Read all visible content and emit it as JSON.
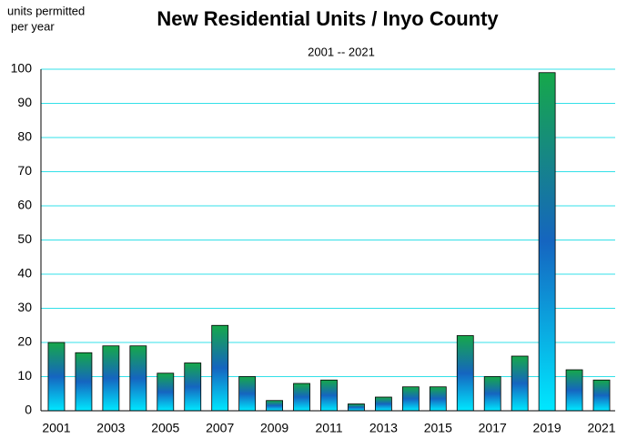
{
  "chart_data": {
    "type": "bar",
    "title": "New Residential Units / Inyo County",
    "subtitle": "2001 -- 2021",
    "y_label": [
      "units permitted",
      "per year"
    ],
    "categories": [
      "2001",
      null,
      "2003",
      null,
      "2005",
      null,
      "2007",
      null,
      "2009",
      null,
      "2011",
      null,
      "2013",
      null,
      "2015",
      null,
      "2017",
      null,
      "2019",
      null,
      "2021"
    ],
    "values": [
      20,
      17,
      19,
      19,
      11,
      14,
      25,
      10,
      3,
      8,
      9,
      2,
      4,
      7,
      7,
      22,
      10,
      16,
      99,
      12,
      9
    ],
    "gradient": [
      "#16a84a",
      "#1565c0",
      "#00e8ff"
    ],
    "grid_color": "#33e0e8",
    "ylim": [
      0,
      100
    ],
    "yticks": [
      0,
      10,
      20,
      30,
      40,
      50,
      60,
      70,
      80,
      90,
      100
    ],
    "grid": true
  }
}
